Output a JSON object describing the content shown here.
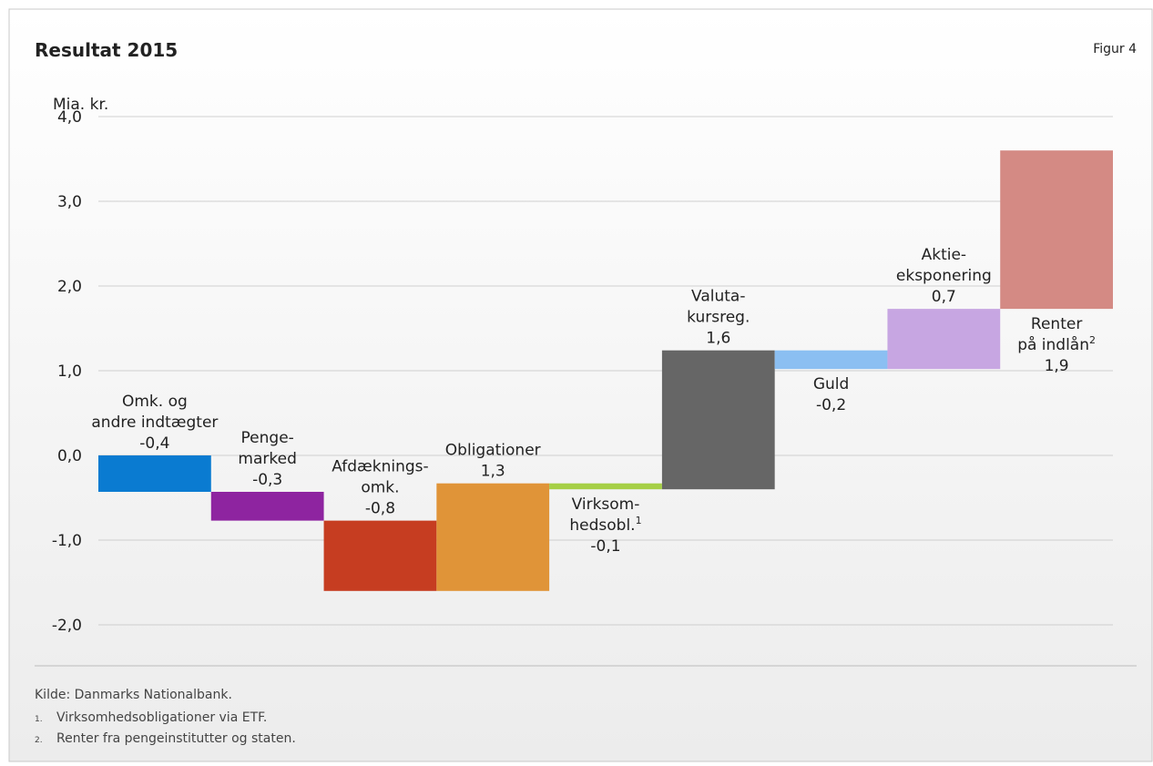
{
  "chart_data": {
    "type": "waterfall",
    "title": "Resultat 2015",
    "figure_label": "Figur 4",
    "y_label": "Mia. kr.",
    "categories": [
      {
        "lines": [
          "Omk. og",
          "andre indtægter"
        ]
      },
      {
        "lines": [
          "Penge-",
          "marked"
        ]
      },
      {
        "lines": [
          "Afdæknings-",
          "omk."
        ]
      },
      {
        "lines": [
          "Obligationer"
        ]
      },
      {
        "lines": [
          "Virksom-",
          "hedsobl."
        ],
        "note": "1"
      },
      {
        "lines": [
          "Valuta-",
          "kursreg."
        ]
      },
      {
        "lines": [
          "Guld"
        ]
      },
      {
        "lines": [
          "Aktie-",
          "eksponering"
        ]
      },
      {
        "lines": [
          "Renter",
          "på indlån"
        ],
        "note": "2"
      }
    ],
    "values": [
      -0.43,
      -0.34,
      -0.83,
      1.27,
      -0.07,
      1.64,
      -0.22,
      0.71,
      1.87
    ],
    "value_labels": [
      "-0,4",
      "-0,3",
      "-0,8",
      "1,3",
      "-0,1",
      "1,6",
      "-0,2",
      "0,7",
      "1,9"
    ],
    "colors": [
      "#0a7bd1",
      "#8e24a0",
      "#c63d21",
      "#e09438",
      "#a6cf45",
      "#666666",
      "#8bbff2",
      "#c7a6e2",
      "#d48a84"
    ],
    "ylim": [
      -2,
      4
    ],
    "yticks": [
      {
        "value": 4,
        "label": "4,0"
      },
      {
        "value": 3,
        "label": "3,0"
      },
      {
        "value": 2,
        "label": "2,0"
      },
      {
        "value": 1,
        "label": "1,0"
      },
      {
        "value": 0,
        "label": "0,0"
      },
      {
        "value": -1,
        "label": "-1,0"
      },
      {
        "value": -2,
        "label": "-2,0"
      }
    ],
    "grid": true,
    "source": "Kilde:   Danmarks Nationalbank.",
    "footnotes": [
      {
        "mark": "1.",
        "text": "Virksomhedsobligationer via ETF."
      },
      {
        "mark": "2.",
        "text": "Renter fra pengeinstitutter og staten."
      }
    ]
  }
}
